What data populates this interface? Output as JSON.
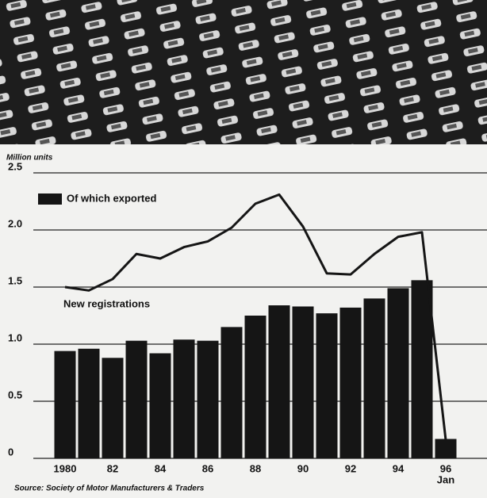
{
  "chart_data": {
    "type": "bar-line",
    "y_axis_label": "Million units",
    "source": "Source: Society of Motor Manufacturers & Traders",
    "categories": [
      "1980",
      null,
      "82",
      null,
      "84",
      null,
      "86",
      null,
      "88",
      null,
      "90",
      null,
      "92",
      null,
      "94",
      null,
      "96"
    ],
    "last_category_sublabel": "Jan",
    "series": [
      {
        "name": "Of which exported",
        "color": "#151515",
        "values": [
          0.94,
          0.96,
          0.88,
          1.03,
          0.92,
          1.04,
          1.03,
          1.15,
          1.25,
          1.34,
          1.33,
          1.27,
          1.32,
          1.4,
          1.49,
          1.56,
          0.17
        ]
      },
      {
        "name": "New registrations",
        "color": "#151515",
        "values": [
          1.5,
          1.47,
          1.57,
          1.79,
          1.75,
          1.85,
          1.9,
          2.02,
          2.23,
          2.31,
          2.03,
          1.62,
          1.61,
          1.79,
          1.94,
          1.98,
          0.16
        ]
      }
    ],
    "ylim": [
      0,
      2.5
    ],
    "yticks": [
      0,
      0.5,
      {
        "value": 1,
        "label": "1.0"
      },
      1.5,
      {
        "value": 2,
        "label": "2.0"
      },
      2.5
    ],
    "grid": true
  }
}
